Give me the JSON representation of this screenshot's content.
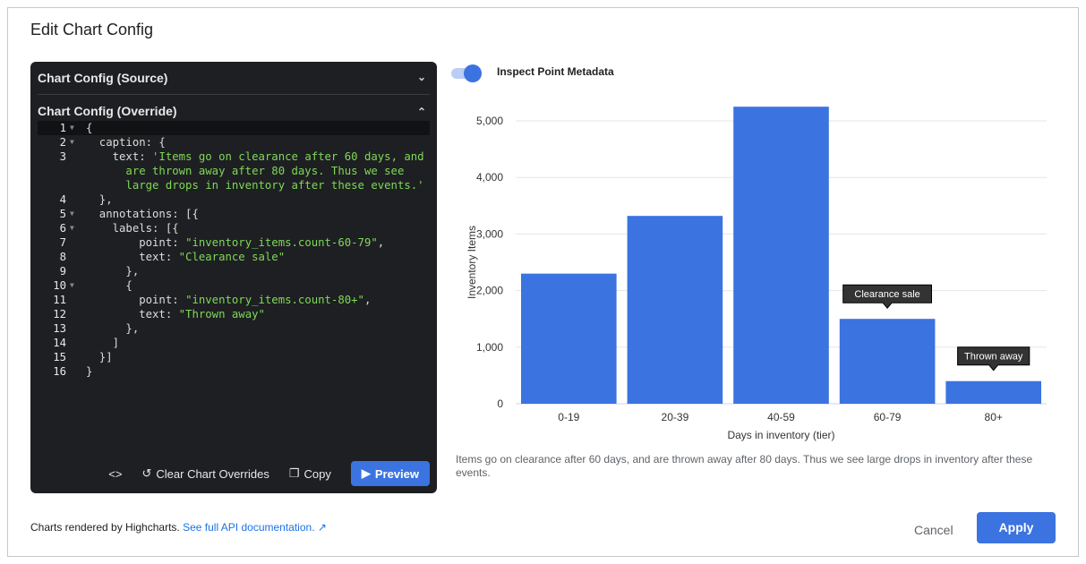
{
  "dialog": {
    "title": "Edit Chart Config"
  },
  "editor": {
    "source_label": "Chart Config (Source)",
    "override_label": "Chart Config (Override)",
    "lines": [
      {
        "n": "1",
        "fold": true,
        "parts": [
          [
            "txt",
            "{"
          ]
        ]
      },
      {
        "n": "2",
        "fold": true,
        "parts": [
          [
            "txt",
            "  caption: {"
          ]
        ]
      },
      {
        "n": "3",
        "fold": false,
        "parts": [
          [
            "txt",
            "    text: "
          ],
          [
            "str",
            "'Items go on clearance after 60 days, and"
          ]
        ]
      },
      {
        "n": "",
        "fold": false,
        "parts": [
          [
            "str",
            "      are thrown away after 80 days. Thus we see"
          ]
        ]
      },
      {
        "n": "",
        "fold": false,
        "parts": [
          [
            "str",
            "      large drops in inventory after these events.'"
          ]
        ]
      },
      {
        "n": "4",
        "fold": false,
        "parts": [
          [
            "txt",
            "  },"
          ]
        ]
      },
      {
        "n": "5",
        "fold": true,
        "parts": [
          [
            "txt",
            "  annotations: [{"
          ]
        ]
      },
      {
        "n": "6",
        "fold": true,
        "parts": [
          [
            "txt",
            "    labels: [{"
          ]
        ]
      },
      {
        "n": "7",
        "fold": false,
        "parts": [
          [
            "txt",
            "        point: "
          ],
          [
            "str",
            "\"inventory_items.count-60-79\""
          ],
          [
            "txt",
            ","
          ]
        ]
      },
      {
        "n": "8",
        "fold": false,
        "parts": [
          [
            "txt",
            "        text: "
          ],
          [
            "str",
            "\"Clearance sale\""
          ]
        ]
      },
      {
        "n": "9",
        "fold": false,
        "parts": [
          [
            "txt",
            "      },"
          ]
        ]
      },
      {
        "n": "10",
        "fold": true,
        "parts": [
          [
            "txt",
            "      {"
          ]
        ]
      },
      {
        "n": "11",
        "fold": false,
        "parts": [
          [
            "txt",
            "        point: "
          ],
          [
            "str",
            "\"inventory_items.count-80+\""
          ],
          [
            "txt",
            ","
          ]
        ]
      },
      {
        "n": "12",
        "fold": false,
        "parts": [
          [
            "txt",
            "        text: "
          ],
          [
            "str",
            "\"Thrown away\""
          ]
        ]
      },
      {
        "n": "13",
        "fold": false,
        "parts": [
          [
            "txt",
            "      },"
          ]
        ]
      },
      {
        "n": "14",
        "fold": false,
        "parts": [
          [
            "txt",
            "    ]"
          ]
        ]
      },
      {
        "n": "15",
        "fold": false,
        "parts": [
          [
            "txt",
            "  }]"
          ]
        ]
      },
      {
        "n": "16",
        "fold": false,
        "parts": [
          [
            "txt",
            "}"
          ]
        ]
      }
    ],
    "buttons": {
      "code": "<>",
      "clear": "Clear Chart Overrides",
      "copy": "Copy",
      "preview": "Preview"
    }
  },
  "toggle": {
    "label": "Inspect Point Metadata",
    "on": true
  },
  "chart_data": {
    "type": "bar",
    "categories": [
      "0-19",
      "20-39",
      "40-59",
      "60-79",
      "80+"
    ],
    "values": [
      2300,
      3320,
      5250,
      1500,
      400
    ],
    "xlabel": "Days in inventory (tier)",
    "ylabel": "Inventory Items",
    "ylim": [
      0,
      5000
    ],
    "yticks": [
      "0",
      "1,000",
      "2,000",
      "3,000",
      "4,000",
      "5,000"
    ],
    "grid": true,
    "color": "#3b73e0",
    "annotations": [
      {
        "category": "60-79",
        "text": "Clearance sale"
      },
      {
        "category": "80+",
        "text": "Thrown away"
      }
    ],
    "caption": "Items go on clearance after 60 days, and are thrown away after 80 days. Thus we see large drops in inventory after these events."
  },
  "footer": {
    "text": "Charts rendered by Highcharts.",
    "link": "See full API documentation.",
    "cancel": "Cancel",
    "apply": "Apply"
  }
}
